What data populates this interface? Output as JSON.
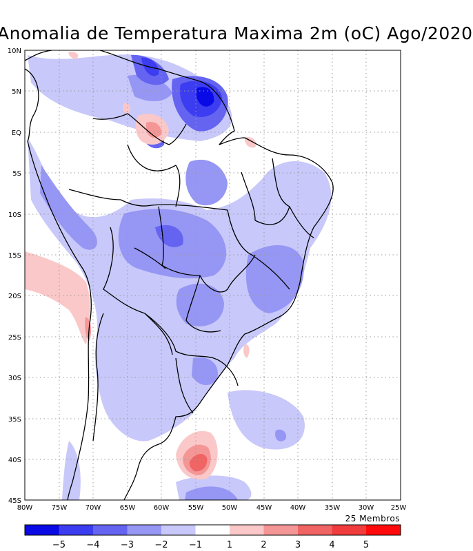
{
  "title": "Anomalia de Temperatura Maxima 2m (oC) Ago/2020",
  "lat_labels": [
    "10N",
    "5N",
    "EQ",
    "5S",
    "10S",
    "15S",
    "20S",
    "25S",
    "30S",
    "35S",
    "40S",
    "45S"
  ],
  "lon_labels": [
    "80W",
    "75W",
    "70W",
    "65W",
    "60W",
    "55W",
    "50W",
    "45W",
    "40W",
    "35W",
    "30W",
    "25W"
  ],
  "members_note": "25 Membros",
  "colorbar": {
    "colors": [
      "#0a0ae6",
      "#3c3cf0",
      "#6464f0",
      "#9696f5",
      "#c8c8fa",
      "#ffffff",
      "#fac8c8",
      "#f59696",
      "#f06464",
      "#f03c3c",
      "#ff0a0a"
    ],
    "labels": [
      "−5",
      "−4",
      "−3",
      "−2",
      "−1",
      "1",
      "2",
      "3",
      "4",
      "5"
    ]
  },
  "anomaly_colors": {
    "neg1": "#c8c8fa",
    "neg2": "#9696f5",
    "neg3": "#6464f0",
    "neg4": "#3c3cf0",
    "neg5": "#0a0ae6",
    "pos1": "#fac8c8",
    "pos2": "#f59696",
    "pos3": "#f06464",
    "pos4": "#f03c3c"
  }
}
